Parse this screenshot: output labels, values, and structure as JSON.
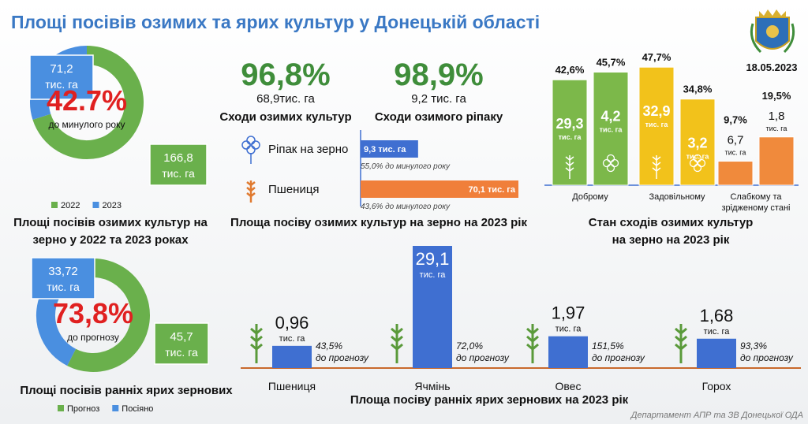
{
  "title": "Площі посівів озимих та ярих культур у Донецькій області",
  "date": "18.05.2023",
  "unit": "тис. га",
  "winter_donut": {
    "center": "42.7%",
    "center_note": "до минулого року",
    "title_lines": [
      "Площі посівів озимих культур на",
      "зерно у 2022 та 2023 роках"
    ],
    "series": [
      {
        "name": "2022",
        "color": "#6ab04c",
        "value": 166.8,
        "label": "166,8"
      },
      {
        "name": "2023",
        "color": "#4a8fe0",
        "value": 71.2,
        "label": "71,2"
      }
    ]
  },
  "spring_donut": {
    "center": "73,8%",
    "center_note": "до прогнозу",
    "title_lines": [
      "Площі посівів ранніх ярих зернових"
    ],
    "series": [
      {
        "name": "Прогноз",
        "color": "#6ab04c",
        "value": 45.7,
        "label": "45,7"
      },
      {
        "name": "Посіяно",
        "color": "#4a8fe0",
        "value": 33.72,
        "label": "33,72"
      }
    ]
  },
  "sprouts": [
    {
      "pct": "96,8%",
      "area": "68,9тис. га",
      "label": "Сходи озимих культур"
    },
    {
      "pct": "98,9%",
      "area": "9,2 тис. га",
      "label": "Сходи озимого ріпаку"
    }
  ],
  "winter_area": {
    "title": "Площа посіву озимих культур на зерно на 2023 рік",
    "bars": [
      {
        "name": "Ріпак на зерно",
        "value": 9.3,
        "value_label": "9,3 тис. га",
        "note": "55,0% до минулого року",
        "color": "#3f6fd1"
      },
      {
        "name": "Пшениця",
        "value": 70.1,
        "value_label": "70,1 тис. га",
        "note": "43,6% до минулого року",
        "color": "#f07f3a"
      }
    ]
  },
  "condition": {
    "title_lines": [
      "Стан сходів озимих культур",
      "на зерно на 2023 рік"
    ],
    "groups": [
      {
        "category_lines": [
          "Доброму"
        ],
        "color": "#7cb84a",
        "bars": [
          {
            "pct": 42.6,
            "pct_label": "42,6%",
            "area_label": "29,3"
          },
          {
            "pct": 45.7,
            "pct_label": "45,7%",
            "area_label": "4,2"
          }
        ]
      },
      {
        "category_lines": [
          "Задовільному"
        ],
        "color": "#f2c21b",
        "bars": [
          {
            "pct": 47.7,
            "pct_label": "47,7%",
            "area_label": "32,9"
          },
          {
            "pct": 34.8,
            "pct_label": "34,8%",
            "area_label": "3,2"
          }
        ]
      },
      {
        "category_lines": [
          "Слабкому та",
          "зрідженому стані"
        ],
        "color": "#f08a3c",
        "bars": [
          {
            "pct": 9.7,
            "pct_label": "9,7%",
            "area_label": "6,7"
          },
          {
            "pct": 19.5,
            "pct_label": "19,5%",
            "area_label": "1,8"
          }
        ]
      }
    ]
  },
  "spring_area": {
    "title": "Площа посіву ранніх ярих зернових на 2023 рік",
    "note": "до прогнозу",
    "color": "#3f6fd1",
    "bars": [
      {
        "name": "Пшениця",
        "value": 0.96,
        "value_label": "0,96",
        "pct_label": "43,5%"
      },
      {
        "name": "Ячмінь",
        "value": 29.1,
        "value_label": "29,1",
        "pct_label": "72,0%"
      },
      {
        "name": "Овес",
        "value": 1.97,
        "value_label": "1,97",
        "pct_label": "151,5%"
      },
      {
        "name": "Горох",
        "value": 1.68,
        "value_label": "1,68",
        "pct_label": "93,3%"
      }
    ]
  },
  "footer": "Департамент АПР та ЗВ Донецької ОДА"
}
